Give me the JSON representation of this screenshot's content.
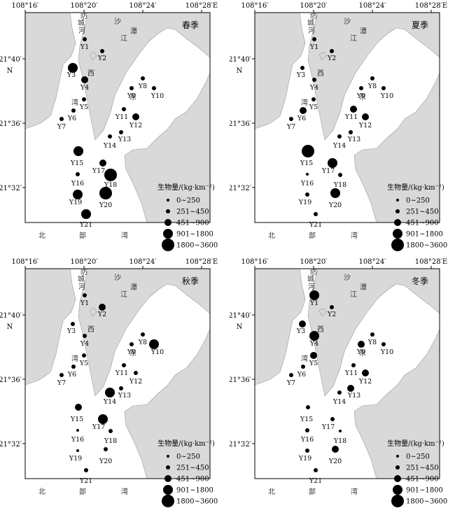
{
  "axes": {
    "top_labels": [
      "108°16′",
      "108°20′",
      "108°24′",
      "108°28′E"
    ],
    "left_labels": [
      "21°40′",
      "N",
      "21°36′",
      "21°32′"
    ]
  },
  "place_labels": [
    "防",
    "城",
    "河",
    "江",
    "沙",
    "潭",
    "西",
    "湾",
    "东",
    "北",
    "部",
    "湾"
  ],
  "legend": {
    "title": "生物量/(kg·km⁻²)",
    "classes": [
      "0~250",
      "251~450",
      "451~900",
      "901~1800",
      "1800~3600"
    ]
  },
  "panels": [
    {
      "season": "春季",
      "classes": [
        1,
        1,
        3,
        2,
        1,
        1,
        1,
        1,
        1,
        1,
        1,
        2,
        1,
        1,
        3,
        1,
        2,
        4,
        3,
        4,
        3
      ]
    },
    {
      "season": "夏季",
      "classes": [
        1,
        1,
        1,
        1,
        1,
        2,
        1,
        1,
        1,
        1,
        2,
        2,
        1,
        1,
        4,
        0,
        3,
        1,
        1,
        3,
        1
      ]
    },
    {
      "season": "秋季",
      "classes": [
        1,
        2,
        1,
        1,
        1,
        1,
        1,
        1,
        1,
        3,
        1,
        1,
        1,
        3,
        2,
        0,
        3,
        1,
        0,
        1,
        1
      ]
    },
    {
      "season": "冬季",
      "classes": [
        3,
        1,
        2,
        3,
        2,
        1,
        1,
        1,
        2,
        1,
        1,
        2,
        2,
        1,
        1,
        1,
        1,
        0,
        1,
        2,
        1
      ]
    }
  ],
  "stations": [
    "Y1",
    "Y2",
    "Y3",
    "Y4",
    "Y5",
    "Y6",
    "Y7",
    "Y8",
    "Y9",
    "Y10",
    "Y11",
    "Y12",
    "Y13",
    "Y14",
    "Y15",
    "Y16",
    "Y17",
    "Y18",
    "Y19",
    "Y20",
    "Y21"
  ]
}
